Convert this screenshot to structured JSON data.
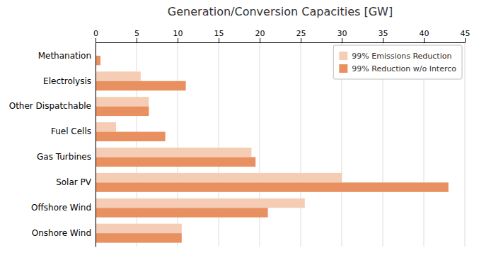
{
  "chart_data": {
    "type": "bar",
    "orientation": "horizontal",
    "title": "Generation/Conversion Capacities [GW]",
    "categories": [
      "Onshore Wind",
      "Offshore Wind",
      "Solar PV",
      "Gas Turbines",
      "Fuel Cells",
      "Other Dispatchable",
      "Electrolysis",
      "Methanation"
    ],
    "series": [
      {
        "name": "99% Emissions Reduction",
        "color": "#f5cdb4",
        "values": [
          10.5,
          25.5,
          30.0,
          19.0,
          2.5,
          6.5,
          5.5,
          0.0
        ]
      },
      {
        "name": "99% Reduction w/o Interco",
        "color": "#e89060",
        "values": [
          10.5,
          21.0,
          43.0,
          19.5,
          8.5,
          6.5,
          11.0,
          0.6
        ]
      }
    ],
    "xlim": [
      0,
      45
    ],
    "xticks": [
      0,
      5,
      10,
      15,
      20,
      25,
      30,
      35,
      40,
      45
    ],
    "grid": true,
    "legend": "upper right"
  }
}
